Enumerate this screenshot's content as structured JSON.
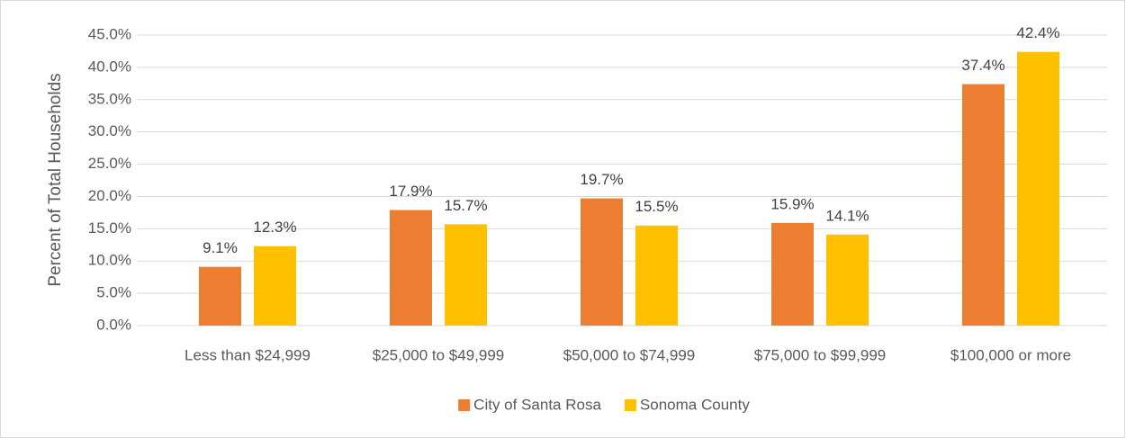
{
  "chart_data": {
    "type": "bar",
    "y_axis_label": "Percent of  Total Households",
    "categories": [
      "Less than $24,999",
      "$25,000  to $49,999",
      "$50,000 to $74,999",
      "$75,000 to $99,999",
      "$100,000 or more"
    ],
    "series": [
      {
        "name": "City of Santa Rosa",
        "color": "#ed7d31",
        "values": [
          9.1,
          17.9,
          19.7,
          15.9,
          37.4
        ],
        "value_labels": [
          "9.1%",
          "17.9%",
          "19.7%",
          "15.9%",
          "37.4%"
        ]
      },
      {
        "name": "Sonoma County",
        "color": "#ffc000",
        "values": [
          12.3,
          15.7,
          15.5,
          14.1,
          42.4
        ],
        "value_labels": [
          "12.3%",
          "15.7%",
          "15.5%",
          "14.1%",
          "42.4%"
        ]
      }
    ],
    "ylim": [
      0,
      45
    ],
    "yticks": [
      {
        "value": 0,
        "label": "0.0%"
      },
      {
        "value": 5,
        "label": "5.0%"
      },
      {
        "value": 10,
        "label": "10.0%"
      },
      {
        "value": 15,
        "label": "15.0%"
      },
      {
        "value": 20,
        "label": "20.0%"
      },
      {
        "value": 25,
        "label": "25.0%"
      },
      {
        "value": 30,
        "label": "30.0%"
      },
      {
        "value": 35,
        "label": "35.0%"
      },
      {
        "value": 40,
        "label": "40.0%"
      },
      {
        "value": 45,
        "label": "45.0%"
      }
    ],
    "grid": true,
    "legend": "bottom"
  }
}
